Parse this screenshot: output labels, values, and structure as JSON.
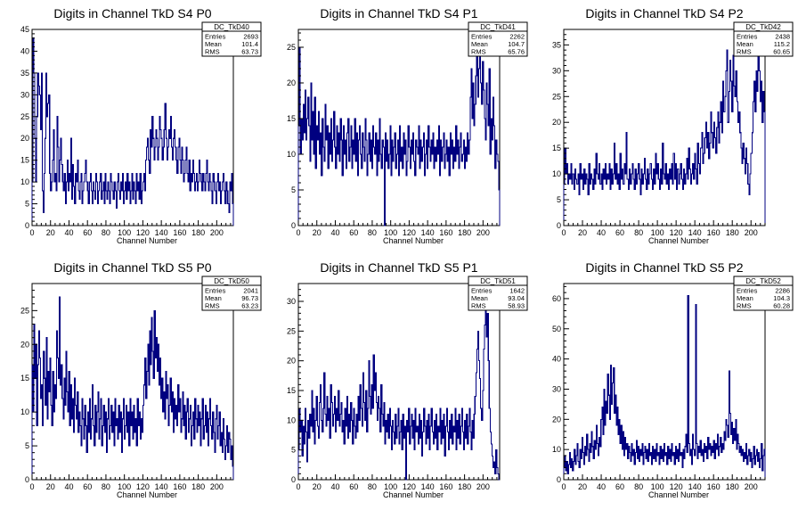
{
  "chart_data": [
    {
      "type": "histogram",
      "title": "Digits in Channel TkD S4 P0",
      "xlabel": "Channel Number",
      "ylabel": "",
      "xlim": [
        0,
        218
      ],
      "ylim": [
        0,
        45
      ],
      "xticks": [
        0,
        20,
        40,
        60,
        80,
        100,
        120,
        140,
        160,
        180,
        200
      ],
      "yticks": [
        0,
        5,
        10,
        15,
        20,
        25,
        30,
        35,
        40,
        45
      ],
      "stats": {
        "name": "DC_TkD40",
        "entries": "2693",
        "mean": "101.4",
        "rms": "63.73"
      },
      "values": [
        10,
        43,
        35,
        20,
        10,
        25,
        35,
        32,
        30,
        22,
        35,
        8,
        3,
        12,
        20,
        35,
        25,
        28,
        30,
        12,
        8,
        10,
        15,
        22,
        10,
        12,
        8,
        25,
        18,
        10,
        15,
        20,
        14,
        10,
        8,
        12,
        5,
        10,
        15,
        8,
        12,
        10,
        20,
        6,
        14,
        9,
        5,
        12,
        10,
        15,
        8,
        6,
        10,
        12,
        5,
        8,
        10,
        12,
        15,
        10,
        8,
        5,
        10,
        12,
        8,
        5,
        10,
        8,
        6,
        12,
        10,
        5,
        8,
        10,
        12,
        6,
        8,
        10,
        5,
        12,
        8,
        6,
        10,
        8,
        5,
        12,
        10,
        8,
        6,
        10,
        8,
        4,
        10,
        12,
        8,
        6,
        10,
        8,
        12,
        5,
        8,
        10,
        6,
        12,
        8,
        10,
        5,
        8,
        12,
        6,
        10,
        8,
        5,
        12,
        8,
        10,
        6,
        12,
        5,
        8,
        10,
        12,
        8,
        15,
        18,
        20,
        15,
        12,
        22,
        18,
        25,
        20,
        15,
        18,
        22,
        20,
        15,
        18,
        25,
        22,
        20,
        15,
        18,
        22,
        28,
        20,
        15,
        18,
        22,
        20,
        25,
        18,
        15,
        20,
        22,
        18,
        15,
        12,
        18,
        20,
        15,
        12,
        18,
        15,
        10,
        12,
        15,
        18,
        12,
        10,
        15,
        8,
        12,
        10,
        15,
        12,
        8,
        10,
        12,
        8,
        10,
        15,
        12,
        10,
        8,
        12,
        10,
        8,
        12,
        15,
        10,
        8,
        12,
        10,
        8,
        5,
        12,
        10,
        8,
        5,
        10,
        12,
        8,
        10,
        5,
        8,
        10,
        12,
        8,
        5,
        10,
        8,
        5,
        3,
        10,
        8,
        12,
        5
      ]
    },
    {
      "type": "histogram",
      "title": "Digits in Channel TkD S4 P1",
      "xlabel": "Channel Number",
      "ylabel": "",
      "xlim": [
        0,
        218
      ],
      "ylim": [
        0,
        27.5
      ],
      "xticks": [
        0,
        20,
        40,
        60,
        80,
        100,
        120,
        140,
        160,
        180,
        200
      ],
      "yticks": [
        0,
        5,
        10,
        15,
        20,
        25
      ],
      "stats": {
        "name": "DC_TkD41",
        "entries": "2262",
        "mean": "104.7",
        "rms": "65.76"
      },
      "values": [
        14,
        25,
        10,
        15,
        12,
        17,
        13,
        19,
        12,
        15,
        18,
        14,
        9,
        20,
        12,
        16,
        10,
        18,
        8,
        14,
        12,
        16,
        10,
        13,
        7,
        15,
        11,
        9,
        17,
        12,
        14,
        8,
        13,
        10,
        15,
        9,
        12,
        16,
        11,
        8,
        14,
        10,
        13,
        9,
        15,
        12,
        7,
        14,
        10,
        12,
        8,
        13,
        15,
        9,
        11,
        14,
        8,
        12,
        10,
        15,
        9,
        13,
        7,
        12,
        14,
        10,
        8,
        13,
        11,
        9,
        15,
        12,
        7,
        10,
        13,
        9,
        12,
        8,
        14,
        11,
        10,
        13,
        7,
        12,
        9,
        15,
        10,
        8,
        12,
        11,
        0,
        13,
        9,
        12,
        8,
        10,
        14,
        7,
        12,
        9,
        11,
        13,
        8,
        10,
        12,
        7,
        14,
        9,
        11,
        8,
        13,
        10,
        12,
        7,
        9,
        14,
        11,
        8,
        12,
        10,
        13,
        9,
        7,
        12,
        11,
        10,
        14,
        8,
        12,
        9,
        11,
        13,
        7,
        10,
        12,
        8,
        14,
        11,
        9,
        12,
        10,
        13,
        8,
        11,
        9,
        12,
        10,
        14,
        7,
        12,
        9,
        11,
        13,
        8,
        10,
        12,
        9,
        11,
        7,
        13,
        10,
        12,
        8,
        11,
        9,
        14,
        10,
        12,
        8,
        11,
        13,
        9,
        10,
        12,
        8,
        11,
        9,
        13,
        10,
        12,
        18,
        22,
        15,
        20,
        14,
        17,
        21,
        24,
        18,
        22,
        26,
        20,
        17,
        23,
        19,
        15,
        12,
        20,
        17,
        14,
        22,
        10,
        15,
        12,
        18,
        14,
        8,
        12,
        10,
        9,
        5
      ]
    },
    {
      "type": "histogram",
      "title": "Digits in Channel TkD S4 P2",
      "xlabel": "Channel Number",
      "ylabel": "",
      "xlim": [
        0,
        215
      ],
      "ylim": [
        0,
        38
      ],
      "xticks": [
        0,
        20,
        40,
        60,
        80,
        100,
        120,
        140,
        160,
        180,
        200
      ],
      "yticks": [
        0,
        5,
        10,
        15,
        20,
        25,
        30,
        35
      ],
      "stats": {
        "name": "DC_TkD42",
        "entries": "2438",
        "mean": "115.2",
        "rms": "60.65"
      },
      "values": [
        8,
        15,
        10,
        12,
        8,
        10,
        9,
        12,
        8,
        10,
        7,
        11,
        9,
        8,
        10,
        6,
        12,
        9,
        10,
        7,
        11,
        8,
        10,
        9,
        6,
        12,
        8,
        10,
        9,
        7,
        11,
        8,
        14,
        10,
        9,
        12,
        8,
        10,
        7,
        11,
        9,
        12,
        8,
        10,
        9,
        12,
        7,
        11,
        8,
        10,
        16,
        9,
        12,
        8,
        10,
        7,
        14,
        9,
        11,
        8,
        12,
        10,
        18,
        9,
        7,
        11,
        8,
        10,
        12,
        9,
        7,
        11,
        8,
        10,
        12,
        9,
        6,
        11,
        8,
        10,
        13,
        9,
        7,
        11,
        8,
        10,
        12,
        9,
        7,
        11,
        8,
        14,
        10,
        12,
        9,
        7,
        11,
        8,
        16,
        10,
        9,
        12,
        8,
        10,
        7,
        11,
        9,
        12,
        8,
        14,
        9,
        12,
        7,
        11,
        8,
        10,
        12,
        9,
        7,
        11,
        8,
        10,
        13,
        9,
        15,
        11,
        8,
        10,
        12,
        9,
        14,
        11,
        8,
        16,
        12,
        10,
        15,
        18,
        12,
        14,
        17,
        20,
        15,
        18,
        13,
        16,
        22,
        18,
        15,
        20,
        17,
        14,
        19,
        22,
        16,
        20,
        24,
        18,
        28,
        22,
        25,
        30,
        34,
        20,
        26,
        32,
        28,
        22,
        33,
        27,
        25,
        30,
        24,
        20,
        22,
        18,
        15,
        12,
        16,
        13,
        10,
        15,
        12,
        8,
        6,
        10,
        14,
        18,
        24,
        28,
        22,
        30,
        26,
        35,
        30,
        24,
        28,
        20,
        26,
        22
      ]
    },
    {
      "type": "histogram",
      "title": "Digits in Channel TkD S5 P0",
      "xlabel": "Channel Number",
      "ylabel": "",
      "xlim": [
        0,
        218
      ],
      "ylim": [
        0,
        29
      ],
      "xticks": [
        0,
        20,
        40,
        60,
        80,
        100,
        120,
        140,
        160,
        180,
        200
      ],
      "yticks": [
        0,
        5,
        10,
        15,
        20,
        25
      ],
      "stats": {
        "name": "DC_TkD50",
        "entries": "2041",
        "mean": "96.73",
        "rms": "63.23"
      },
      "values": [
        17,
        10,
        23,
        15,
        20,
        8,
        17,
        22,
        18,
        12,
        14,
        8,
        19,
        15,
        11,
        21,
        9,
        16,
        13,
        18,
        11,
        8,
        16,
        10,
        14,
        12,
        22,
        18,
        15,
        27,
        14,
        17,
        12,
        9,
        15,
        11,
        19,
        13,
        10,
        16,
        8,
        14,
        9,
        12,
        7,
        15,
        11,
        9,
        13,
        7,
        10,
        8,
        5,
        12,
        9,
        6,
        11,
        8,
        4,
        10,
        7,
        12,
        6,
        9,
        14,
        8,
        5,
        11,
        7,
        10,
        13,
        6,
        9,
        12,
        5,
        8,
        11,
        7,
        10,
        4,
        9,
        12,
        6,
        8,
        11,
        7,
        10,
        5,
        12,
        8,
        9,
        6,
        11,
        7,
        10,
        4,
        9,
        12,
        6,
        8,
        11,
        7,
        10,
        5,
        12,
        8,
        10,
        6,
        11,
        7,
        9,
        5,
        12,
        8,
        10,
        6,
        9,
        7,
        11,
        14,
        18,
        12,
        16,
        20,
        14,
        22,
        17,
        24,
        19,
        15,
        25,
        18,
        21,
        16,
        20,
        14,
        18,
        12,
        15,
        10,
        13,
        9,
        16,
        12,
        14,
        8,
        11,
        15,
        10,
        13,
        7,
        12,
        9,
        11,
        8,
        14,
        10,
        12,
        7,
        9,
        13,
        8,
        11,
        6,
        10,
        12,
        7,
        9,
        11,
        5,
        8,
        10,
        6,
        12,
        9,
        7,
        11,
        8,
        10,
        5,
        9,
        12,
        6,
        8,
        11,
        7,
        10,
        5,
        9,
        12,
        8,
        6,
        10,
        7,
        4,
        9,
        11,
        6,
        8,
        10,
        5,
        7,
        4,
        9,
        6,
        3,
        5,
        8,
        4,
        7,
        6,
        3,
        5,
        2
      ]
    },
    {
      "type": "histogram",
      "title": "Digits in Channel TkD S5 P1",
      "xlabel": "Channel Number",
      "ylabel": "",
      "xlim": [
        0,
        218
      ],
      "ylim": [
        0,
        33
      ],
      "xticks": [
        0,
        20,
        40,
        60,
        80,
        100,
        120,
        140,
        160,
        180,
        200
      ],
      "yticks": [
        0,
        5,
        10,
        15,
        20,
        25,
        30
      ],
      "stats": {
        "name": "DC_TkD51",
        "entries": "1642",
        "mean": "93.04",
        "rms": "58.93"
      },
      "values": [
        5,
        12,
        8,
        10,
        4,
        9,
        6,
        12,
        8,
        3,
        10,
        7,
        11,
        9,
        15,
        8,
        12,
        6,
        10,
        14,
        9,
        7,
        13,
        16,
        10,
        8,
        12,
        18,
        11,
        9,
        14,
        10,
        12,
        7,
        16,
        13,
        9,
        11,
        14,
        8,
        12,
        10,
        15,
        9,
        11,
        13,
        8,
        10,
        6,
        12,
        9,
        14,
        7,
        11,
        8,
        13,
        10,
        6,
        12,
        9,
        7,
        11,
        8,
        14,
        10,
        16,
        12,
        9,
        18,
        13,
        10,
        15,
        8,
        12,
        20,
        14,
        11,
        16,
        12,
        21,
        15,
        18,
        13,
        10,
        14,
        12,
        8,
        16,
        11,
        9,
        13,
        6,
        10,
        8,
        11,
        7,
        12,
        9,
        5,
        10,
        8,
        6,
        11,
        7,
        9,
        12,
        6,
        8,
        10,
        5,
        11,
        7,
        9,
        0,
        10,
        8,
        12,
        6,
        9,
        11,
        7,
        10,
        5,
        12,
        8,
        9,
        6,
        11,
        7,
        10,
        4,
        8,
        12,
        9,
        6,
        10,
        7,
        11,
        5,
        9,
        12,
        8,
        6,
        10,
        7,
        11,
        5,
        9,
        8,
        12,
        6,
        10,
        7,
        11,
        4,
        9,
        12,
        8,
        5,
        10,
        7,
        11,
        6,
        9,
        8,
        12,
        5,
        10,
        7,
        11,
        6,
        9,
        12,
        8,
        5,
        10,
        7,
        11,
        6,
        9,
        12,
        8,
        5,
        10,
        7,
        11,
        14,
        18,
        22,
        25,
        20,
        17,
        12,
        10,
        15,
        22,
        26,
        30,
        24,
        28,
        20,
        12,
        8,
        6,
        4,
        2,
        3,
        1,
        5,
        2,
        1,
        0
      ]
    },
    {
      "type": "histogram",
      "title": "Digits in Channel TkD S5 P2",
      "xlabel": "Channel Number",
      "ylabel": "",
      "xlim": [
        0,
        215
      ],
      "ylim": [
        0,
        65
      ],
      "xticks": [
        0,
        20,
        40,
        60,
        80,
        100,
        120,
        140,
        160,
        180,
        200
      ],
      "yticks": [
        0,
        10,
        20,
        30,
        40,
        50,
        60
      ],
      "stats": {
        "name": "DC_TkD52",
        "entries": "2286",
        "mean": "104.3",
        "rms": "60.28"
      },
      "values": [
        4,
        8,
        3,
        6,
        2,
        5,
        9,
        4,
        7,
        3,
        6,
        10,
        5,
        8,
        12,
        6,
        4,
        10,
        7,
        14,
        9,
        5,
        11,
        8,
        15,
        10,
        6,
        12,
        9,
        16,
        11,
        7,
        13,
        10,
        18,
        12,
        8,
        14,
        11,
        20,
        24,
        15,
        30,
        18,
        26,
        22,
        35,
        28,
        20,
        38,
        25,
        32,
        37,
        22,
        28,
        18,
        24,
        15,
        20,
        12,
        18,
        10,
        16,
        8,
        14,
        10,
        12,
        7,
        11,
        9,
        6,
        12,
        8,
        10,
        5,
        9,
        13,
        7,
        11,
        6,
        10,
        8,
        12,
        5,
        9,
        11,
        7,
        10,
        6,
        12,
        8,
        9,
        5,
        11,
        7,
        10,
        6,
        12,
        8,
        9,
        5,
        11,
        7,
        10,
        6,
        12,
        8,
        9,
        5,
        11,
        7,
        10,
        6,
        12,
        8,
        9,
        5,
        11,
        7,
        10,
        6,
        12,
        8,
        9,
        4,
        10,
        7,
        11,
        15,
        9,
        61,
        12,
        8,
        10,
        5,
        15,
        10,
        8,
        58,
        12,
        7,
        11,
        9,
        13,
        8,
        10,
        6,
        12,
        9,
        11,
        7,
        14,
        10,
        12,
        8,
        11,
        9,
        13,
        7,
        12,
        10,
        15,
        8,
        11,
        14,
        9,
        12,
        10,
        16,
        13,
        20,
        18,
        14,
        36,
        22,
        15,
        19,
        12,
        17,
        13,
        20,
        10,
        15,
        12,
        9,
        11,
        8,
        10,
        6,
        9,
        7,
        12,
        5,
        8,
        10,
        6,
        9,
        4,
        7,
        11,
        5,
        8,
        10,
        6,
        9,
        4,
        7,
        12,
        3,
        8,
        10
      ]
    }
  ]
}
